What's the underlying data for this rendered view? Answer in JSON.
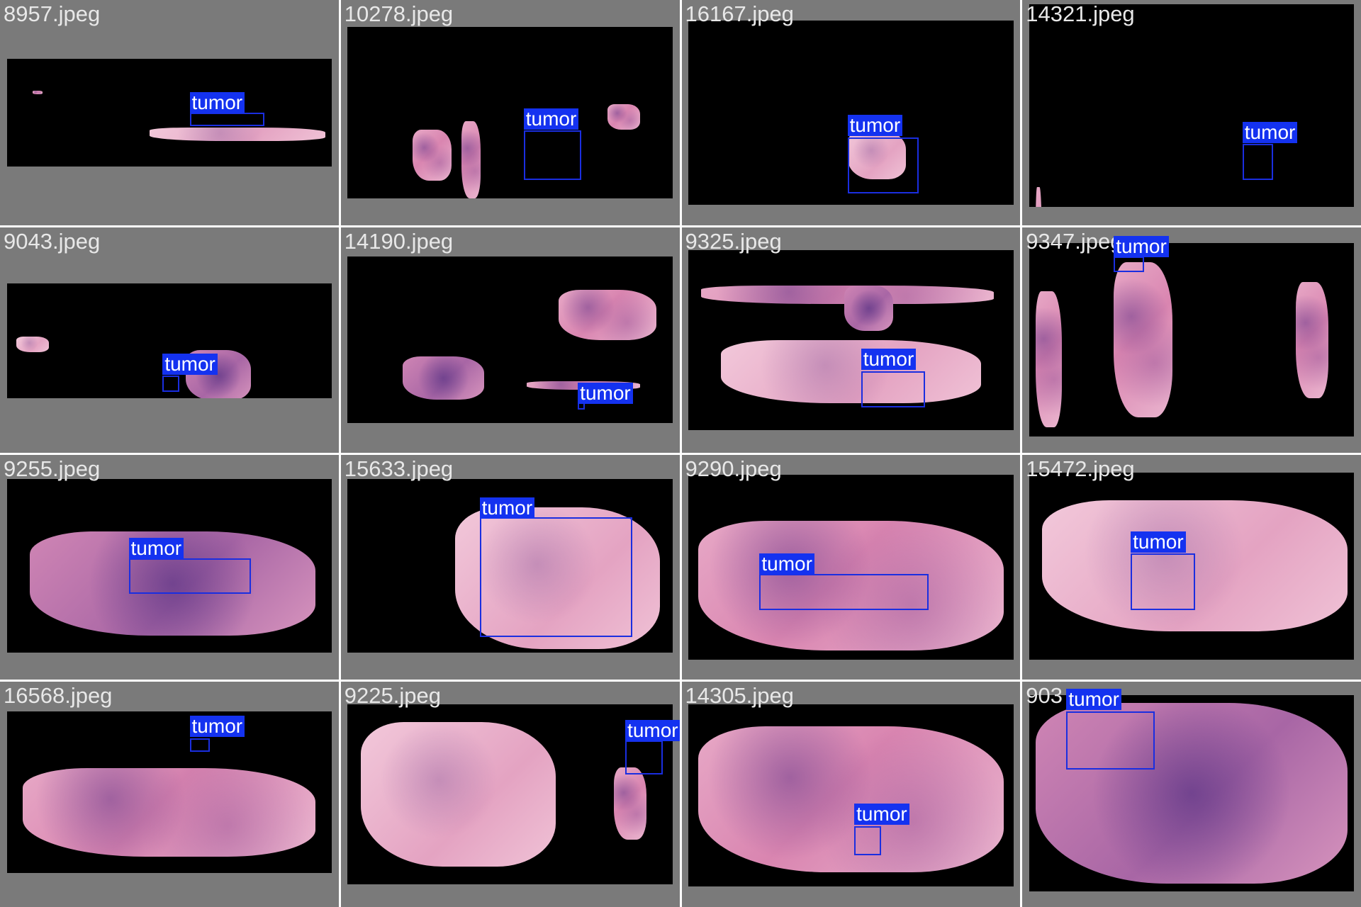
{
  "colors": {
    "tile_background": "#7a7a7a",
    "slide_background": "#000000",
    "tissue": "#e0a0c3",
    "box_border": "#1a2ee0",
    "label_background": "#1432f0",
    "label_text": "#ffffff",
    "filename_text": "#e8e8e8"
  },
  "tiles": [
    {
      "filename": "8957.jpeg",
      "label": "tumor"
    },
    {
      "filename": "10278.jpeg",
      "label": "tumor"
    },
    {
      "filename": "16167.jpeg",
      "label": "tumor"
    },
    {
      "filename": "14321.jpeg",
      "label": "tumor"
    },
    {
      "filename": "9043.jpeg",
      "label": "tumor"
    },
    {
      "filename": "14190.jpeg",
      "label": "tumor"
    },
    {
      "filename": "9325.jpeg",
      "label": "tumor"
    },
    {
      "filename": "9347.jpeg",
      "label": "tumor"
    },
    {
      "filename": "9255.jpeg",
      "label": "tumor"
    },
    {
      "filename": "15633.jpeg",
      "label": "tumor"
    },
    {
      "filename": "9290.jpeg",
      "label": "tumor"
    },
    {
      "filename": "15472.jpeg",
      "label": "tumor"
    },
    {
      "filename": "16568.jpeg",
      "label": "tumor"
    },
    {
      "filename": "9225.jpeg",
      "label": "tumor"
    },
    {
      "filename": "14305.jpeg",
      "label": "tumor"
    },
    {
      "filename": "903",
      "label": "tumor"
    }
  ]
}
